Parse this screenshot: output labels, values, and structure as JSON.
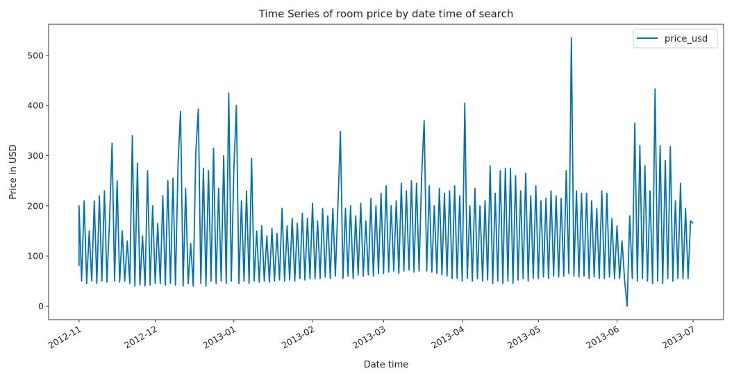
{
  "chart_data": {
    "type": "line",
    "title": "Time Series of room price by date time of search",
    "xlabel": "Date time",
    "ylabel": "Price in USD",
    "xlim": [
      "2012-10-20",
      "2013-07-13"
    ],
    "ylim": [
      -27,
      562
    ],
    "x_ticks": [
      "2012-11",
      "2012-12",
      "2013-01",
      "2013-02",
      "2013-03",
      "2013-04",
      "2013-05",
      "2013-06",
      "2013-07"
    ],
    "y_ticks": [
      0,
      100,
      200,
      300,
      400,
      500
    ],
    "grid": false,
    "legend_position": "top-right",
    "series": [
      {
        "name": "price_usd",
        "color": "#0072b2",
        "points": [
          [
            "2012-11-01",
            80
          ],
          [
            "2012-11-01",
            200
          ],
          [
            "2012-11-02",
            50
          ],
          [
            "2012-11-03",
            210
          ],
          [
            "2012-11-04",
            45
          ],
          [
            "2012-11-05",
            150
          ],
          [
            "2012-11-06",
            50
          ],
          [
            "2012-11-07",
            210
          ],
          [
            "2012-11-08",
            45
          ],
          [
            "2012-11-09",
            220
          ],
          [
            "2012-11-10",
            50
          ],
          [
            "2012-11-11",
            230
          ],
          [
            "2012-11-12",
            48
          ],
          [
            "2012-11-13",
            170
          ],
          [
            "2012-11-14",
            325
          ],
          [
            "2012-11-15",
            50
          ],
          [
            "2012-11-16",
            250
          ],
          [
            "2012-11-17",
            48
          ],
          [
            "2012-11-18",
            150
          ],
          [
            "2012-11-19",
            50
          ],
          [
            "2012-11-20",
            130
          ],
          [
            "2012-11-21",
            45
          ],
          [
            "2012-11-22",
            340
          ],
          [
            "2012-11-23",
            40
          ],
          [
            "2012-11-24",
            285
          ],
          [
            "2012-11-25",
            42
          ],
          [
            "2012-11-26",
            140
          ],
          [
            "2012-11-27",
            40
          ],
          [
            "2012-11-28",
            270
          ],
          [
            "2012-11-29",
            42
          ],
          [
            "2012-11-30",
            200
          ],
          [
            "2012-12-01",
            45
          ],
          [
            "2012-12-02",
            165
          ],
          [
            "2012-12-03",
            45
          ],
          [
            "2012-12-04",
            220
          ],
          [
            "2012-12-05",
            42
          ],
          [
            "2012-12-06",
            250
          ],
          [
            "2012-12-07",
            45
          ],
          [
            "2012-12-08",
            255
          ],
          [
            "2012-12-09",
            42
          ],
          [
            "2012-12-10",
            285
          ],
          [
            "2012-12-11",
            388
          ],
          [
            "2012-12-12",
            40
          ],
          [
            "2012-12-13",
            235
          ],
          [
            "2012-12-14",
            45
          ],
          [
            "2012-12-15",
            125
          ],
          [
            "2012-12-16",
            40
          ],
          [
            "2012-12-17",
            305
          ],
          [
            "2012-12-18",
            393
          ],
          [
            "2012-12-19",
            45
          ],
          [
            "2012-12-20",
            275
          ],
          [
            "2012-12-21",
            40
          ],
          [
            "2012-12-22",
            270
          ],
          [
            "2012-12-23",
            50
          ],
          [
            "2012-12-24",
            315
          ],
          [
            "2012-12-25",
            45
          ],
          [
            "2012-12-26",
            235
          ],
          [
            "2012-12-27",
            50
          ],
          [
            "2012-12-28",
            300
          ],
          [
            "2012-12-29",
            45
          ],
          [
            "2012-12-30",
            425
          ],
          [
            "2012-12-31",
            50
          ],
          [
            "2013-01-01",
            275
          ],
          [
            "2013-01-02",
            400
          ],
          [
            "2013-01-03",
            45
          ],
          [
            "2013-01-04",
            210
          ],
          [
            "2013-01-05",
            50
          ],
          [
            "2013-01-06",
            230
          ],
          [
            "2013-01-07",
            45
          ],
          [
            "2013-01-08",
            295
          ],
          [
            "2013-01-09",
            50
          ],
          [
            "2013-01-10",
            150
          ],
          [
            "2013-01-11",
            48
          ],
          [
            "2013-01-12",
            160
          ],
          [
            "2013-01-13",
            50
          ],
          [
            "2013-01-14",
            140
          ],
          [
            "2013-01-15",
            48
          ],
          [
            "2013-01-16",
            155
          ],
          [
            "2013-01-17",
            50
          ],
          [
            "2013-01-18",
            145
          ],
          [
            "2013-01-19",
            52
          ],
          [
            "2013-01-20",
            195
          ],
          [
            "2013-01-21",
            50
          ],
          [
            "2013-01-22",
            160
          ],
          [
            "2013-01-23",
            52
          ],
          [
            "2013-01-24",
            175
          ],
          [
            "2013-01-25",
            50
          ],
          [
            "2013-01-26",
            165
          ],
          [
            "2013-01-27",
            55
          ],
          [
            "2013-01-28",
            185
          ],
          [
            "2013-01-29",
            52
          ],
          [
            "2013-01-30",
            175
          ],
          [
            "2013-01-31",
            55
          ],
          [
            "2013-02-01",
            205
          ],
          [
            "2013-02-02",
            55
          ],
          [
            "2013-02-03",
            170
          ],
          [
            "2013-02-04",
            55
          ],
          [
            "2013-02-05",
            195
          ],
          [
            "2013-02-06",
            58
          ],
          [
            "2013-02-07",
            180
          ],
          [
            "2013-02-08",
            55
          ],
          [
            "2013-02-09",
            195
          ],
          [
            "2013-02-10",
            60
          ],
          [
            "2013-02-11",
            200
          ],
          [
            "2013-02-12",
            348
          ],
          [
            "2013-02-13",
            55
          ],
          [
            "2013-02-14",
            195
          ],
          [
            "2013-02-15",
            60
          ],
          [
            "2013-02-16",
            200
          ],
          [
            "2013-02-17",
            55
          ],
          [
            "2013-02-18",
            180
          ],
          [
            "2013-02-19",
            62
          ],
          [
            "2013-02-20",
            205
          ],
          [
            "2013-02-21",
            60
          ],
          [
            "2013-02-22",
            170
          ],
          [
            "2013-02-23",
            62
          ],
          [
            "2013-02-24",
            215
          ],
          [
            "2013-02-25",
            60
          ],
          [
            "2013-02-26",
            200
          ],
          [
            "2013-02-27",
            65
          ],
          [
            "2013-02-28",
            225
          ],
          [
            "2013-03-01",
            65
          ],
          [
            "2013-03-02",
            240
          ],
          [
            "2013-03-03",
            68
          ],
          [
            "2013-03-04",
            200
          ],
          [
            "2013-03-05",
            70
          ],
          [
            "2013-03-06",
            210
          ],
          [
            "2013-03-07",
            65
          ],
          [
            "2013-03-08",
            245
          ],
          [
            "2013-03-09",
            70
          ],
          [
            "2013-03-10",
            230
          ],
          [
            "2013-03-11",
            72
          ],
          [
            "2013-03-12",
            250
          ],
          [
            "2013-03-13",
            68
          ],
          [
            "2013-03-14",
            245
          ],
          [
            "2013-03-15",
            70
          ],
          [
            "2013-03-16",
            260
          ],
          [
            "2013-03-17",
            370
          ],
          [
            "2013-03-18",
            70
          ],
          [
            "2013-03-19",
            240
          ],
          [
            "2013-03-20",
            68
          ],
          [
            "2013-03-21",
            200
          ],
          [
            "2013-03-22",
            65
          ],
          [
            "2013-03-23",
            235
          ],
          [
            "2013-03-24",
            62
          ],
          [
            "2013-03-25",
            225
          ],
          [
            "2013-03-26",
            60
          ],
          [
            "2013-03-27",
            230
          ],
          [
            "2013-03-28",
            55
          ],
          [
            "2013-03-29",
            240
          ],
          [
            "2013-03-30",
            55
          ],
          [
            "2013-03-31",
            220
          ],
          [
            "2013-04-01",
            50
          ],
          [
            "2013-04-02",
            405
          ],
          [
            "2013-04-03",
            55
          ],
          [
            "2013-04-04",
            200
          ],
          [
            "2013-04-05",
            50
          ],
          [
            "2013-04-06",
            235
          ],
          [
            "2013-04-07",
            55
          ],
          [
            "2013-04-08",
            200
          ],
          [
            "2013-04-09",
            50
          ],
          [
            "2013-04-10",
            210
          ],
          [
            "2013-04-11",
            52
          ],
          [
            "2013-04-12",
            280
          ],
          [
            "2013-04-13",
            45
          ],
          [
            "2013-04-14",
            225
          ],
          [
            "2013-04-15",
            50
          ],
          [
            "2013-04-16",
            270
          ],
          [
            "2013-04-17",
            45
          ],
          [
            "2013-04-18",
            275
          ],
          [
            "2013-04-19",
            50
          ],
          [
            "2013-04-20",
            275
          ],
          [
            "2013-04-21",
            45
          ],
          [
            "2013-04-22",
            260
          ],
          [
            "2013-04-23",
            52
          ],
          [
            "2013-04-24",
            230
          ],
          [
            "2013-04-25",
            55
          ],
          [
            "2013-04-26",
            265
          ],
          [
            "2013-04-27",
            50
          ],
          [
            "2013-04-28",
            220
          ],
          [
            "2013-04-29",
            55
          ],
          [
            "2013-04-30",
            240
          ],
          [
            "2013-05-01",
            55
          ],
          [
            "2013-05-02",
            210
          ],
          [
            "2013-05-03",
            58
          ],
          [
            "2013-05-04",
            215
          ],
          [
            "2013-05-05",
            55
          ],
          [
            "2013-05-06",
            230
          ],
          [
            "2013-05-07",
            60
          ],
          [
            "2013-05-08",
            220
          ],
          [
            "2013-05-09",
            58
          ],
          [
            "2013-05-10",
            215
          ],
          [
            "2013-05-11",
            60
          ],
          [
            "2013-05-12",
            270
          ],
          [
            "2013-05-13",
            65
          ],
          [
            "2013-05-14",
            535
          ],
          [
            "2013-05-15",
            60
          ],
          [
            "2013-05-16",
            230
          ],
          [
            "2013-05-17",
            58
          ],
          [
            "2013-05-18",
            225
          ],
          [
            "2013-05-19",
            60
          ],
          [
            "2013-05-20",
            225
          ],
          [
            "2013-05-21",
            55
          ],
          [
            "2013-05-22",
            210
          ],
          [
            "2013-05-23",
            58
          ],
          [
            "2013-05-24",
            195
          ],
          [
            "2013-05-25",
            55
          ],
          [
            "2013-05-26",
            230
          ],
          [
            "2013-05-27",
            55
          ],
          [
            "2013-05-28",
            225
          ],
          [
            "2013-05-29",
            58
          ],
          [
            "2013-05-30",
            175
          ],
          [
            "2013-05-31",
            55
          ],
          [
            "2013-06-01",
            160
          ],
          [
            "2013-06-02",
            55
          ],
          [
            "2013-06-03",
            130
          ],
          [
            "2013-06-04",
            50
          ],
          [
            "2013-06-05",
            0
          ],
          [
            "2013-06-06",
            180
          ],
          [
            "2013-06-07",
            55
          ],
          [
            "2013-06-08",
            365
          ],
          [
            "2013-06-09",
            50
          ],
          [
            "2013-06-10",
            320
          ],
          [
            "2013-06-11",
            55
          ],
          [
            "2013-06-12",
            280
          ],
          [
            "2013-06-13",
            50
          ],
          [
            "2013-06-14",
            230
          ],
          [
            "2013-06-15",
            45
          ],
          [
            "2013-06-16",
            433
          ],
          [
            "2013-06-17",
            50
          ],
          [
            "2013-06-18",
            320
          ],
          [
            "2013-06-19",
            45
          ],
          [
            "2013-06-20",
            290
          ],
          [
            "2013-06-21",
            55
          ],
          [
            "2013-06-22",
            318
          ],
          [
            "2013-06-23",
            50
          ],
          [
            "2013-06-24",
            210
          ],
          [
            "2013-06-25",
            55
          ],
          [
            "2013-06-26",
            245
          ],
          [
            "2013-06-27",
            55
          ],
          [
            "2013-06-28",
            195
          ],
          [
            "2013-06-29",
            55
          ],
          [
            "2013-06-30",
            170
          ],
          [
            "2013-07-01",
            165
          ]
        ]
      }
    ]
  }
}
